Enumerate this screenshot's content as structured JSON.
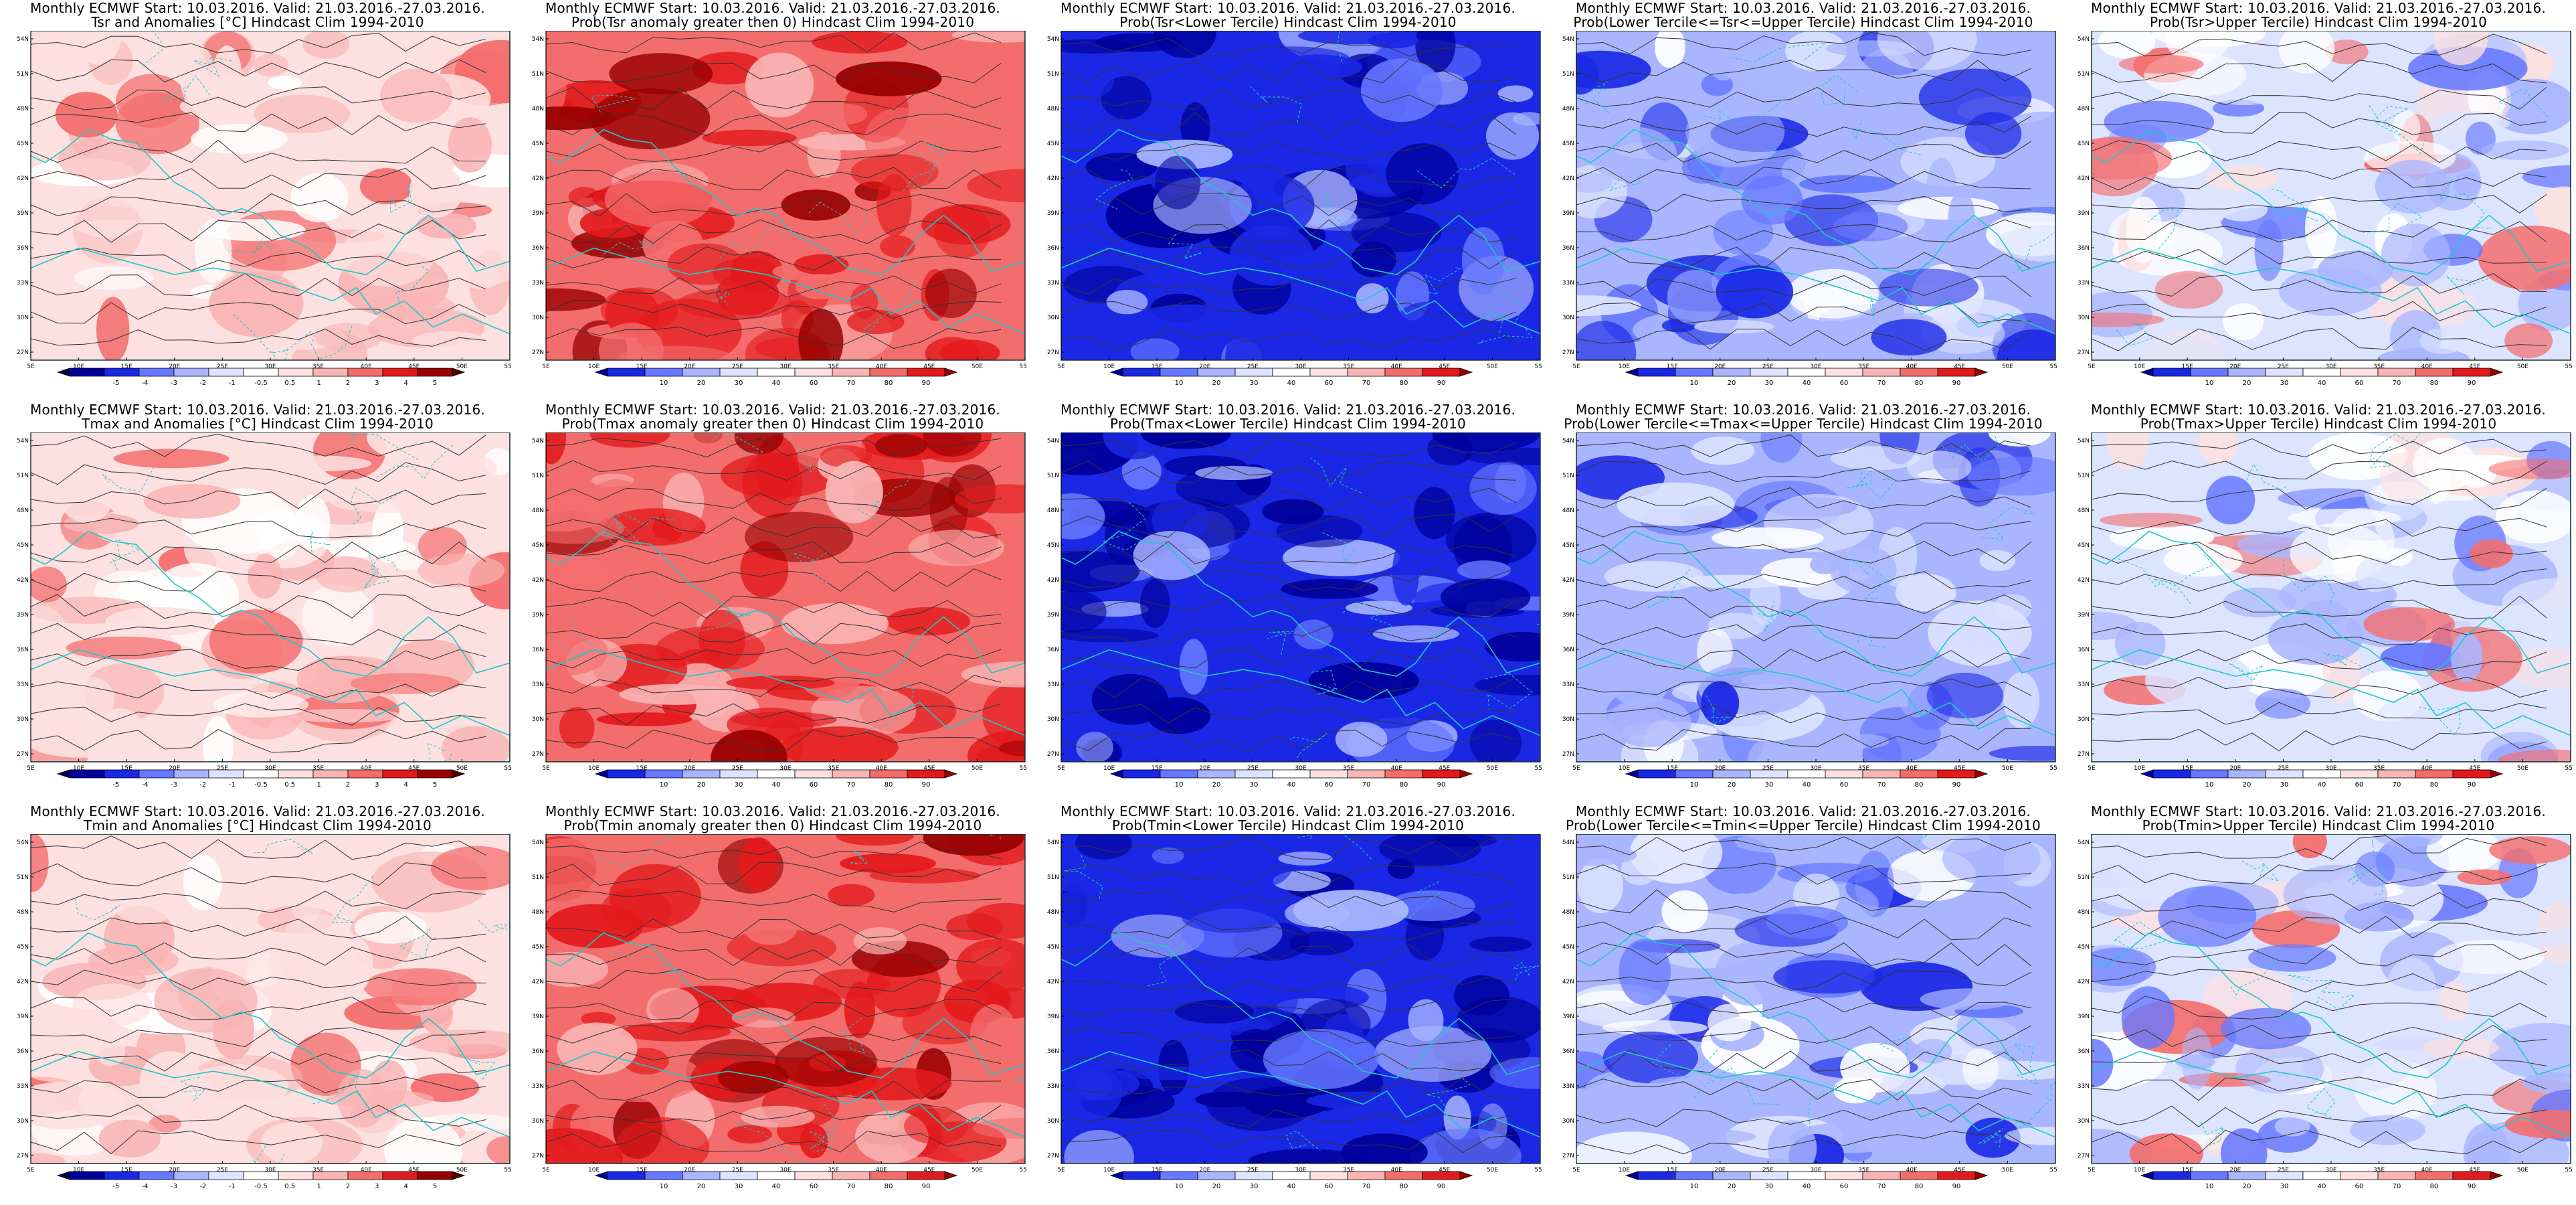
{
  "colors": {
    "dark_red": "#990000",
    "red": "#e31a1c",
    "mid_red": "#f46d6d",
    "light_red": "#f9b4b4",
    "pale_red": "#fde0e0",
    "white": "#ffffff",
    "pale_blue": "#dde4ff",
    "light_blue": "#a9b6ff",
    "mid_blue": "#6678ff",
    "blue": "#1a28e6",
    "dark_blue": "#000099",
    "coast": "#20c8c8",
    "contour": "#333333"
  },
  "axes": {
    "lat_labels": [
      "54N",
      "51N",
      "48N",
      "45N",
      "42N",
      "39N",
      "36N",
      "33N",
      "30N",
      "27N"
    ],
    "lon_labels": [
      "5E",
      "10E",
      "15E",
      "20E",
      "25E",
      "30E",
      "35E",
      "40E",
      "45E",
      "50E",
      "55E"
    ]
  },
  "colorbars": {
    "anomaly": [
      "-5",
      "-4",
      "-3",
      "-2",
      "-1",
      "-0.5",
      "0.5",
      "1",
      "2",
      "3",
      "4",
      "5"
    ],
    "prob": [
      "10",
      "20",
      "30",
      "40",
      "60",
      "70",
      "80",
      "90"
    ]
  },
  "panels": [
    {
      "t1": "Monthly ECMWF Start: 10.03.2016. Valid: 21.03.2016.-27.03.2016.",
      "t2": "Tsr and Anomalies [°C] Hindcast Clim 1994-2010",
      "bar": "anomaly",
      "scheme": "anomaly"
    },
    {
      "t1": "Monthly ECMWF Start: 10.03.2016. Valid: 21.03.2016.-27.03.2016.",
      "t2": "Prob(Tsr anomaly greater then 0) Hindcast Clim 1994-2010",
      "bar": "prob",
      "scheme": "warm"
    },
    {
      "t1": "Monthly ECMWF Start: 10.03.2016. Valid: 21.03.2016.-27.03.2016.",
      "t2": "Prob(Tsr<Lower Tercile) Hindcast Clim 1994-2010",
      "bar": "prob",
      "scheme": "cold"
    },
    {
      "t1": "Monthly ECMWF Start: 10.03.2016. Valid: 21.03.2016.-27.03.2016.",
      "t2": "Prob(Lower Tercile<=Tsr<=Upper Tercile) Hindcast Clim 1994-2010",
      "bar": "prob",
      "scheme": "mid"
    },
    {
      "t1": "Monthly ECMWF Start: 10.03.2016. Valid: 21.03.2016.-27.03.2016.",
      "t2": "Prob(Tsr>Upper Tercile) Hindcast Clim 1994-2010",
      "bar": "prob",
      "scheme": "upper"
    },
    {
      "t1": "Monthly ECMWF Start: 10.03.2016. Valid: 21.03.2016.-27.03.2016.",
      "t2": "Tmax and Anomalies [°C] Hindcast Clim 1994-2010",
      "bar": "anomaly",
      "scheme": "anomaly"
    },
    {
      "t1": "Monthly ECMWF Start: 10.03.2016. Valid: 21.03.2016.-27.03.2016.",
      "t2": "Prob(Tmax anomaly greater then 0) Hindcast Clim 1994-2010",
      "bar": "prob",
      "scheme": "warm"
    },
    {
      "t1": "Monthly ECMWF Start: 10.03.2016. Valid: 21.03.2016.-27.03.2016.",
      "t2": "Prob(Tmax<Lower Tercile) Hindcast Clim 1994-2010",
      "bar": "prob",
      "scheme": "cold"
    },
    {
      "t1": "Monthly ECMWF Start: 10.03.2016. Valid: 21.03.2016.-27.03.2016.",
      "t2": "Prob(Lower Tercile<=Tmax<=Upper Tercile) Hindcast Clim 1994-2010",
      "bar": "prob",
      "scheme": "mid"
    },
    {
      "t1": "Monthly ECMWF Start: 10.03.2016. Valid: 21.03.2016.-27.03.2016.",
      "t2": "Prob(Tmax>Upper Tercile) Hindcast Clim 1994-2010",
      "bar": "prob",
      "scheme": "upper"
    },
    {
      "t1": "Monthly ECMWF Start: 10.03.2016. Valid: 21.03.2016.-27.03.2016.",
      "t2": "Tmin and Anomalies [°C] Hindcast Clim 1994-2010",
      "bar": "anomaly",
      "scheme": "anomaly"
    },
    {
      "t1": "Monthly ECMWF Start: 10.03.2016. Valid: 21.03.2016.-27.03.2016.",
      "t2": "Prob(Tmin anomaly greater then 0) Hindcast Clim 1994-2010",
      "bar": "prob",
      "scheme": "warm"
    },
    {
      "t1": "Monthly ECMWF Start: 10.03.2016. Valid: 21.03.2016.-27.03.2016.",
      "t2": "Prob(Tmin<Lower Tercile) Hindcast Clim 1994-2010",
      "bar": "prob",
      "scheme": "cold"
    },
    {
      "t1": "Monthly ECMWF Start: 10.03.2016. Valid: 21.03.2016.-27.03.2016.",
      "t2": "Prob(Lower Tercile<=Tmin<=Upper Tercile) Hindcast Clim 1994-2010",
      "bar": "prob",
      "scheme": "mid"
    },
    {
      "t1": "Monthly ECMWF Start: 10.03.2016. Valid: 21.03.2016.-27.03.2016.",
      "t2": "Prob(Tmin>Upper Tercile) Hindcast Clim 1994-2010",
      "bar": "prob",
      "scheme": "upper"
    }
  ]
}
